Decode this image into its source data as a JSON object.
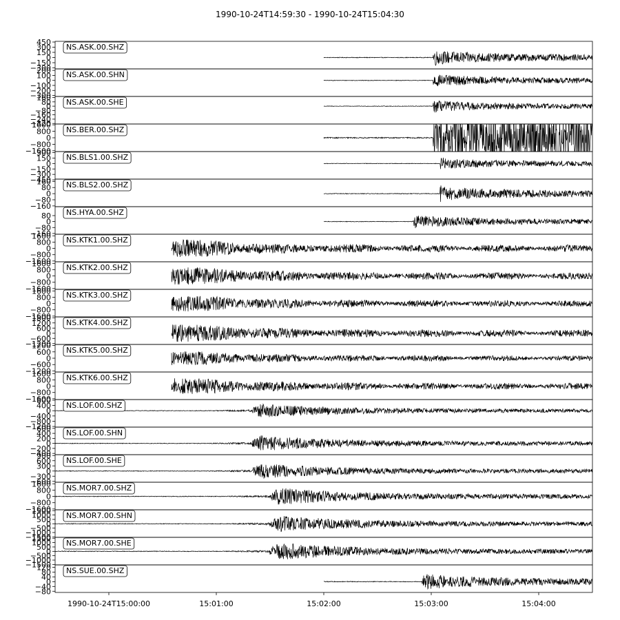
{
  "chart_data": {
    "type": "line",
    "title": "1990-10-24T14:59:30  -  1990-10-24T15:04:30",
    "time_axis": {
      "start_seconds": 0,
      "end_seconds": 300,
      "ticks": [
        {
          "seconds": 30,
          "label": "1990-10-24T15:00:00"
        },
        {
          "seconds": 90,
          "label": "15:01:00"
        },
        {
          "seconds": 150,
          "label": "15:02:00"
        },
        {
          "seconds": 210,
          "label": "15:03:00"
        },
        {
          "seconds": 270,
          "label": "15:04:00"
        }
      ]
    },
    "traces": [
      {
        "label": "NS.ASK.00.SHZ",
        "yticks": [
          "450",
          "300",
          "150",
          "0",
          "−150",
          "−300"
        ],
        "ymin": -330,
        "ymax": 470,
        "amp": 240,
        "start": 150,
        "onset": 211,
        "pattern": "local"
      },
      {
        "label": "NS.ASK.00.SHN",
        "yticks": [
          "200",
          "100",
          "0",
          "−100",
          "−200",
          "−300"
        ],
        "ymin": -320,
        "ymax": 230,
        "amp": 140,
        "start": 150,
        "onset": 211,
        "pattern": "local"
      },
      {
        "label": "NS.ASK.00.SHE",
        "yticks": [
          "160",
          "80",
          "0",
          "−80",
          "−160",
          "−240",
          "−320"
        ],
        "ymin": -330,
        "ymax": 180,
        "amp": 120,
        "start": 150,
        "onset": 211,
        "pattern": "local"
      },
      {
        "label": "NS.BER.00.SHZ",
        "yticks": [
          "1600",
          "800",
          "0",
          "−800",
          "−1600"
        ],
        "ymin": -1700,
        "ymax": 1700,
        "amp": 1700,
        "start": 150,
        "onset": 211,
        "pattern": "clipped"
      },
      {
        "label": "NS.BLS1.00.SHZ",
        "yticks": [
          "300",
          "150",
          "0",
          "−150",
          "−300",
          "−450"
        ],
        "ymin": -430,
        "ymax": 330,
        "amp": 180,
        "start": 150,
        "onset": 215,
        "pattern": "local"
      },
      {
        "label": "NS.BLS2.00.SHZ",
        "yticks": [
          "160",
          "80",
          "0",
          "−80",
          "−160"
        ],
        "ymin": -170,
        "ymax": 190,
        "amp": 110,
        "start": 150,
        "onset": 215,
        "pattern": "local"
      },
      {
        "label": "NS.HYA.00.SHZ",
        "yticks": [
          "80",
          "0",
          "−80",
          "−160"
        ],
        "ymin": -170,
        "ymax": 200,
        "amp": 95,
        "start": 150,
        "onset": 200,
        "pattern": "local"
      },
      {
        "label": "NS.KTK1.00.SHZ",
        "yticks": [
          "1600",
          "800",
          "0",
          "−800",
          "−1600"
        ],
        "ymin": -1700,
        "ymax": 1800,
        "amp": 1100,
        "start": 65,
        "onset": 65,
        "pattern": "burst"
      },
      {
        "label": "NS.KTK2.00.SHZ",
        "yticks": [
          "1600",
          "800",
          "0",
          "−800",
          "−1600"
        ],
        "ymin": -1700,
        "ymax": 1800,
        "amp": 1100,
        "start": 65,
        "onset": 65,
        "pattern": "burst"
      },
      {
        "label": "NS.KTK3.00.SHZ",
        "yticks": [
          "1600",
          "800",
          "0",
          "−800",
          "−1600"
        ],
        "ymin": -1700,
        "ymax": 1800,
        "amp": 1000,
        "start": 65,
        "onset": 65,
        "pattern": "burst"
      },
      {
        "label": "NS.KTK4.00.SHZ",
        "yticks": [
          "1800",
          "1200",
          "600",
          "0",
          "−600",
          "−1200"
        ],
        "ymin": -1300,
        "ymax": 1900,
        "amp": 1000,
        "start": 65,
        "onset": 65,
        "pattern": "burst"
      },
      {
        "label": "NS.KTK5.00.SHZ",
        "yticks": [
          "1200",
          "600",
          "0",
          "−600",
          "−1200"
        ],
        "ymin": -1300,
        "ymax": 1300,
        "amp": 650,
        "start": 65,
        "onset": 65,
        "pattern": "burst"
      },
      {
        "label": "NS.KTK6.00.SHZ",
        "yticks": [
          "1600",
          "800",
          "0",
          "−800",
          "−1600"
        ],
        "ymin": -1700,
        "ymax": 1800,
        "amp": 1000,
        "start": 65,
        "onset": 65,
        "pattern": "burst"
      },
      {
        "label": "NS.LOF.00.SHZ",
        "yticks": [
          "800",
          "400",
          "0",
          "−400",
          "−800",
          "−1200"
        ],
        "ymin": -1250,
        "ymax": 850,
        "amp": 550,
        "start": 0,
        "onset": 110,
        "pattern": "regional"
      },
      {
        "label": "NS.LOF.00.SHN",
        "yticks": [
          "600",
          "400",
          "200",
          "0",
          "−200",
          "−400"
        ],
        "ymin": -450,
        "ymax": 650,
        "amp": 320,
        "start": 0,
        "onset": 110,
        "pattern": "regional"
      },
      {
        "label": "NS.LOF.00.SHE",
        "yticks": [
          "900",
          "600",
          "300",
          "0",
          "−300",
          "−600"
        ],
        "ymin": -650,
        "ymax": 950,
        "amp": 450,
        "start": 0,
        "onset": 110,
        "pattern": "regional"
      },
      {
        "label": "NS.MOR7.00.SHZ",
        "yticks": [
          "1600",
          "800",
          "0",
          "−800",
          "−1600"
        ],
        "ymin": -1700,
        "ymax": 1800,
        "amp": 1100,
        "start": 0,
        "onset": 120,
        "pattern": "regional"
      },
      {
        "label": "NS.MOR7.00.SHN",
        "yticks": [
          "1500",
          "1000",
          "500",
          "0",
          "−500",
          "−1000",
          "−1500"
        ],
        "ymin": -1550,
        "ymax": 1600,
        "amp": 950,
        "start": 0,
        "onset": 120,
        "pattern": "regional"
      },
      {
        "label": "NS.MOR7.00.SHE",
        "yticks": [
          "1500",
          "1000",
          "500",
          "0",
          "−500",
          "−1000",
          "−1500"
        ],
        "ymin": -1550,
        "ymax": 1600,
        "amp": 1000,
        "start": 0,
        "onset": 120,
        "pattern": "regional"
      },
      {
        "label": "NS.SUE.00.SHZ",
        "yticks": [
          "120",
          "80",
          "40",
          "0",
          "−40",
          "−80"
        ],
        "ymin": -90,
        "ymax": 140,
        "amp": 75,
        "start": 150,
        "onset": 205,
        "pattern": "local"
      }
    ]
  }
}
